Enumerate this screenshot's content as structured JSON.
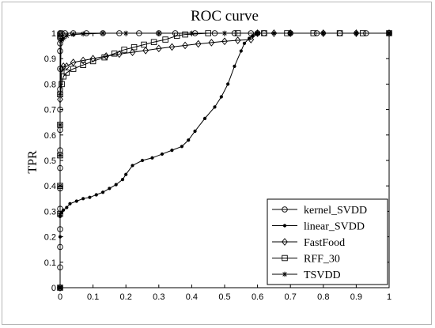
{
  "chart_data": {
    "type": "line",
    "title": "ROC curve",
    "xlabel": "",
    "ylabel": "TPR",
    "xlim": [
      0,
      1
    ],
    "ylim": [
      0,
      1
    ],
    "xticks": [
      "0",
      "0.1",
      "0.2",
      "0.3",
      "0.4",
      "0.5",
      "0.6",
      "0.7",
      "0.8",
      "0.9",
      "1"
    ],
    "yticks": [
      "0",
      "0.1",
      "0.2",
      "0.3",
      "0.4",
      "0.5",
      "0.6",
      "0.7",
      "0.8",
      "0.9",
      "1"
    ],
    "grid": false,
    "legend_position": "bottom-right",
    "series": [
      {
        "name": "kernel_SVDD",
        "marker": "circle",
        "x": [
          0,
          0,
          0,
          0,
          0,
          0,
          0,
          0,
          0,
          0,
          0,
          0,
          0,
          0,
          0,
          0,
          0,
          0,
          0,
          0,
          0.005,
          0.015,
          0.04,
          0.08,
          0.13,
          0.18,
          0.24,
          0.3,
          0.35,
          0.41,
          0.47,
          0.53,
          0.58,
          0.6,
          0.62,
          0.7,
          0.78,
          0.85,
          0.93,
          1.0
        ],
        "y": [
          0.0,
          0.08,
          0.16,
          0.23,
          0.31,
          0.39,
          0.47,
          0.54,
          0.62,
          0.7,
          0.78,
          0.86,
          0.93,
          0.96,
          0.98,
          0.985,
          0.99,
          0.995,
          1.0,
          1.0,
          1.0,
          1.0,
          1.0,
          1.0,
          1.0,
          1.0,
          1.0,
          1.0,
          1.0,
          1.0,
          1.0,
          1.0,
          1.0,
          1.0,
          1.0,
          1.0,
          1.0,
          1.0,
          1.0,
          1.0
        ]
      },
      {
        "name": "linear_SVDD",
        "marker": "dot",
        "x": [
          0,
          0,
          0,
          0.005,
          0.01,
          0.02,
          0.03,
          0.05,
          0.07,
          0.09,
          0.11,
          0.13,
          0.15,
          0.17,
          0.19,
          0.2,
          0.22,
          0.25,
          0.28,
          0.31,
          0.34,
          0.37,
          0.39,
          0.41,
          0.44,
          0.47,
          0.49,
          0.51,
          0.53,
          0.55,
          0.56,
          0.575,
          0.585,
          0.595,
          0.6,
          0.65,
          0.7,
          0.8,
          0.9,
          1.0
        ],
        "y": [
          0.0,
          0.2,
          0.28,
          0.295,
          0.305,
          0.315,
          0.33,
          0.34,
          0.35,
          0.355,
          0.365,
          0.375,
          0.39,
          0.405,
          0.425,
          0.445,
          0.48,
          0.5,
          0.51,
          0.525,
          0.54,
          0.555,
          0.58,
          0.615,
          0.665,
          0.71,
          0.75,
          0.8,
          0.87,
          0.93,
          0.96,
          0.98,
          0.99,
          0.998,
          1.0,
          1.0,
          1.0,
          1.0,
          1.0,
          1.0
        ]
      },
      {
        "name": "FastFood",
        "marker": "diamond",
        "x": [
          0,
          0,
          0.005,
          0.01,
          0.02,
          0.04,
          0.07,
          0.1,
          0.14,
          0.18,
          0.22,
          0.26,
          0.3,
          0.34,
          0.38,
          0.42,
          0.46,
          0.5,
          0.54,
          0.58,
          0.6,
          0.65,
          0.7,
          0.8,
          0.9,
          1.0
        ],
        "y": [
          0.0,
          0.74,
          0.86,
          0.87,
          0.87,
          0.885,
          0.893,
          0.9,
          0.91,
          0.918,
          0.925,
          0.932,
          0.94,
          0.946,
          0.952,
          0.958,
          0.963,
          0.968,
          0.972,
          0.975,
          1.0,
          1.0,
          1.0,
          1.0,
          1.0,
          1.0
        ]
      },
      {
        "name": "RFF_30",
        "marker": "square",
        "x": [
          0,
          0,
          0,
          0,
          0,
          0,
          0.005,
          0.01,
          0.02,
          0.04,
          0.07,
          0.1,
          0.135,
          0.165,
          0.195,
          0.225,
          0.255,
          0.285,
          0.32,
          0.355,
          0.38,
          0.45,
          0.54,
          0.62,
          0.69,
          0.77,
          0.85,
          0.92,
          1.0
        ],
        "y": [
          0.0,
          0.29,
          0.4,
          0.52,
          0.64,
          0.76,
          0.8,
          0.83,
          0.845,
          0.86,
          0.875,
          0.89,
          0.905,
          0.92,
          0.935,
          0.945,
          0.955,
          0.965,
          0.975,
          0.99,
          0.995,
          1.0,
          1.0,
          1.0,
          1.0,
          1.0,
          1.0,
          1.0,
          1.0
        ]
      },
      {
        "name": "TSVDD",
        "marker": "star",
        "x": [
          0,
          0,
          0,
          0,
          0,
          0,
          0.003,
          0.006,
          0.01,
          0.02,
          0.04,
          0.07,
          0.13,
          0.2,
          0.3,
          0.4,
          0.5,
          0.6,
          0.7,
          0.8,
          0.9,
          1.0
        ],
        "y": [
          0.0,
          0.29,
          0.4,
          0.52,
          0.64,
          0.76,
          0.97,
          0.975,
          0.98,
          0.99,
          0.995,
          0.997,
          1.0,
          1.0,
          1.0,
          1.0,
          1.0,
          1.0,
          1.0,
          1.0,
          1.0,
          1.0
        ]
      }
    ]
  }
}
